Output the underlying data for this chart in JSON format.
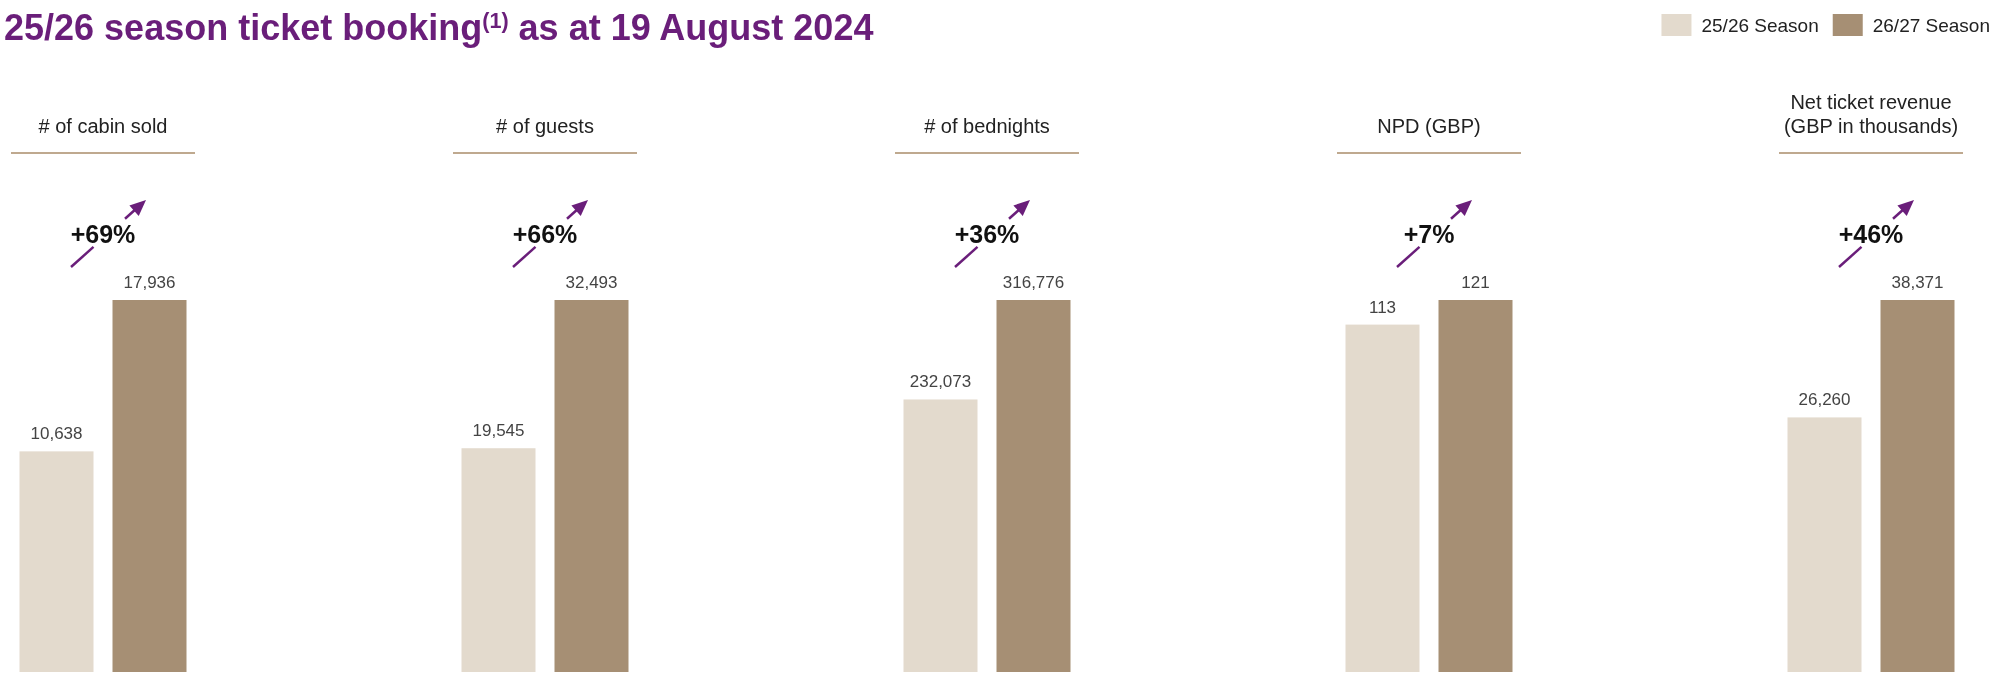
{
  "chart_data": [
    {
      "type": "bar",
      "subtitle": "25/26 season ticket booking$^{(1)}$ as at 19 August 2024",
      "title": "# of cabin sold",
      "categories": [
        null
      ],
      "annotations": [
        "+69%"
      ],
      "series": [
        {
          "color": "#e3dacd",
          "values": [
            10638
          ],
          "value_labels": [
            "10,638"
          ]
        },
        {
          "color": "#a68f74",
          "values": [
            17936
          ],
          "value_labels": [
            "17,936"
          ]
        }
      ]
    },
    {
      "type": "bar",
      "title": "# of guests",
      "categories": [
        null
      ],
      "annotations": [
        "+66%"
      ],
      "series": [
        {
          "color": "#e3dacd",
          "values": [
            19545
          ],
          "value_labels": [
            "19,545"
          ]
        },
        {
          "color": "#a68f74",
          "values": [
            32493
          ],
          "value_labels": [
            "32,493"
          ]
        }
      ]
    },
    {
      "type": "bar",
      "title": "# of bednights",
      "categories": [
        null
      ],
      "annotations": [
        "+36%"
      ],
      "series": [
        {
          "color": "#e3dacd",
          "values": [
            232073
          ],
          "value_labels": [
            "232,073"
          ]
        },
        {
          "color": "#a68f74",
          "values": [
            316776
          ],
          "value_labels": [
            "316,776"
          ]
        }
      ]
    },
    {
      "type": "bar",
      "title": "NPD (GBP)",
      "categories": [
        null
      ],
      "data_labels": true,
      "annotations": [
        "+7%"
      ],
      "series": [
        {
          "color": "#e3dacd",
          "values": [
            113
          ]
        },
        {
          "color": "#a68f74",
          "values": [
            121
          ]
        }
      ]
    },
    {
      "type": "bar",
      "title": "Net ticket revenue (GBP in thousands)",
      "categories": [
        null
      ],
      "annotations": [
        "+46%"
      ],
      "legend": "top",
      "series": [
        {
          "name": "25/26 Season",
          "color": "#e3dacd",
          "values": [
            26260
          ],
          "value_labels": [
            "26,260"
          ]
        },
        {
          "name": "26/27 Season",
          "color": "#a68f74",
          "values": [
            38371
          ],
          "value_labels": [
            "38,371"
          ]
        }
      ]
    }
  ]
}
